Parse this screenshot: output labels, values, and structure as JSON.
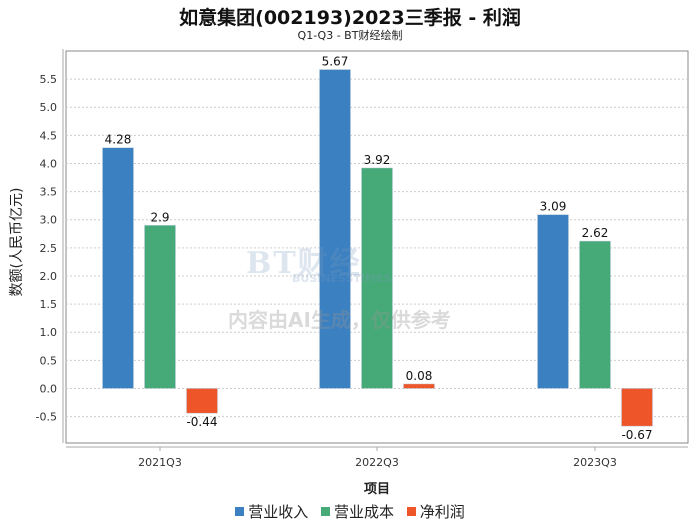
{
  "chart_data": {
    "type": "bar",
    "title": "如意集团(002193)2023三季报 - 利润",
    "subtitle": "Q1-Q3 - BT财经绘制",
    "xlabel": "项目",
    "ylabel": "数额(人民币亿元)",
    "categories": [
      "2021Q3",
      "2022Q3",
      "2023Q3"
    ],
    "series": [
      {
        "name": "营业收入",
        "color": "#3b80c0",
        "values": [
          4.28,
          5.67,
          3.09
        ]
      },
      {
        "name": "营业成本",
        "color": "#46aa78",
        "values": [
          2.9,
          3.92,
          2.62
        ]
      },
      {
        "name": "净利润",
        "color": "#ee5528",
        "values": [
          -0.44,
          0.08,
          -0.67
        ]
      }
    ],
    "value_labels": [
      [
        "4.28",
        "5.67",
        "3.09"
      ],
      [
        "2.9",
        "3.92",
        "2.62"
      ],
      [
        "-0.44",
        "0.08",
        "-0.67"
      ]
    ],
    "yticks": [
      "5.5",
      "5.0",
      "4.5",
      "4.0",
      "3.5",
      "3.0",
      "2.5",
      "2.0",
      "1.5",
      "1.0",
      "0.5",
      "0.0",
      "-0.5"
    ],
    "ytick_values": [
      5.5,
      5.0,
      4.5,
      4.0,
      3.5,
      3.0,
      2.5,
      2.0,
      1.5,
      1.0,
      0.5,
      0.0,
      -0.5
    ],
    "ylim": [
      -0.97,
      6.0
    ],
    "grid": true,
    "legend_position": "bottom"
  },
  "watermark": {
    "logo": "BT财经",
    "logo_sub": "BUSINESSTIMES",
    "notice": "内容由AI生成，仅供参考"
  }
}
